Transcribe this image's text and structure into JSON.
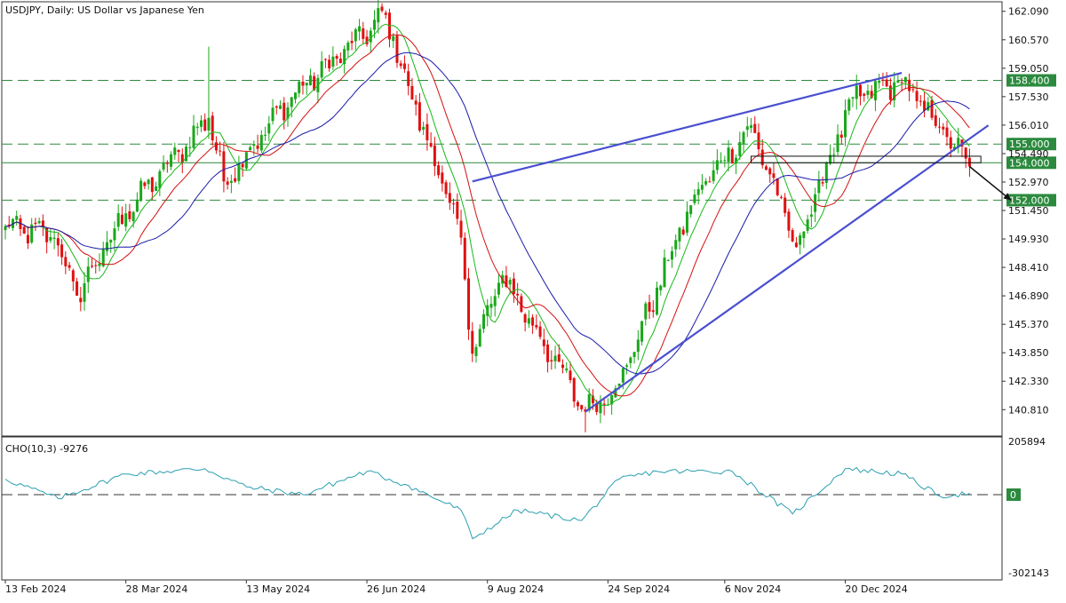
{
  "main_title": "USDJPY, Daily:  US Dollar vs Japanese Yen",
  "indicator_title": "CHO(10,3) -9276",
  "colors": {
    "bull": "#1aa71a",
    "bear": "#e01010",
    "ma_fast": "#19b919",
    "ma_mid": "#d41010",
    "ma_slow": "#1a1aa8",
    "trendline": "#4a4fd0",
    "level_line": "#2b8a3e",
    "cho_line": "#2a9fb0",
    "label_bg": "#2b8a3e",
    "label_text": "#ffffff"
  },
  "chart_data": [
    {
      "type": "candlestick",
      "title": "USDJPY, Daily:  US Dollar vs Japanese Yen",
      "price_ticks": [
        "162.090",
        "160.570",
        "159.050",
        "157.530",
        "156.010",
        "154.490",
        "152.970",
        "151.450",
        "149.930",
        "148.410",
        "146.890",
        "145.370",
        "143.850",
        "142.330",
        "140.810"
      ],
      "date_ticks": [
        "13 Feb 2024",
        "28 Mar 2024",
        "13 May 2024",
        "26 Jun 2024",
        "9 Aug 2024",
        "24 Sep 2024",
        "6 Nov 2024",
        "20 Dec 2024"
      ],
      "ylim": [
        139.4,
        162.6
      ],
      "horizontal_levels": [
        {
          "value": 158.4,
          "label": "158.400",
          "style": "dashed"
        },
        {
          "value": 155.0,
          "label": "155.000",
          "style": "dashed"
        },
        {
          "value": 154.0,
          "label": "154.000",
          "style": "solid"
        },
        {
          "value": 152.0,
          "label": "152.000",
          "style": "dashed"
        }
      ],
      "key_points": [
        {
          "date": "2024-02-13",
          "close": 150.6
        },
        {
          "date": "2024-03-01",
          "close": 150.0
        },
        {
          "date": "2024-03-11",
          "close": 146.9
        },
        {
          "date": "2024-03-28",
          "close": 151.3
        },
        {
          "date": "2024-04-29",
          "high": 160.2,
          "close": 156.4
        },
        {
          "date": "2024-05-03",
          "close": 153.0
        },
        {
          "date": "2024-05-29",
          "close": 157.5
        },
        {
          "date": "2024-07-03",
          "close": 161.9
        },
        {
          "date": "2024-07-11",
          "close": 158.1
        },
        {
          "date": "2024-07-31",
          "close": 150.0
        },
        {
          "date": "2024-08-05",
          "close": 143.8
        },
        {
          "date": "2024-08-15",
          "close": 148.0
        },
        {
          "date": "2024-09-16",
          "low": 139.6,
          "close": 140.7
        },
        {
          "date": "2024-09-27",
          "close": 142.2
        },
        {
          "date": "2024-10-25",
          "close": 152.3
        },
        {
          "date": "2024-11-15",
          "close": 156.0
        },
        {
          "date": "2024-12-03",
          "close": 149.5
        },
        {
          "date": "2024-12-24",
          "close": 157.5
        },
        {
          "date": "2025-01-10",
          "close": 158.3
        },
        {
          "date": "2025-01-24",
          "close": 155.9
        },
        {
          "date": "2025-02-05",
          "close": 153.8
        }
      ],
      "moving_averages": [
        {
          "name": "fast",
          "color": "#19b919"
        },
        {
          "name": "mid",
          "color": "#d41010"
        },
        {
          "name": "slow",
          "color": "#1a1aa8"
        }
      ],
      "trendlines": [
        {
          "from": {
            "date": "2024-08-05",
            "value": 153.0
          },
          "to": {
            "date": "2025-01-10",
            "value": 158.8
          }
        },
        {
          "from": {
            "date": "2024-09-16",
            "value": 140.7
          },
          "to": {
            "date": "2025-02-12",
            "value": 156.0
          }
        }
      ],
      "annotations": [
        {
          "type": "rectangle",
          "from": {
            "date": "2024-11-15",
            "value": 154.35
          },
          "to": {
            "date": "2025-02-10",
            "value": 154.0
          }
        },
        {
          "type": "arrow",
          "from": {
            "date": "2025-02-05",
            "value": 153.8
          },
          "to": {
            "date": "2025-02-20",
            "value": 152.0
          }
        }
      ]
    },
    {
      "type": "line",
      "title": "CHO(10,3) -9276",
      "y_ticks": [
        "205894",
        "0",
        "-302143"
      ],
      "ylim": [
        -302143,
        205894
      ],
      "zero_line": true,
      "series": [
        {
          "color": "#2a9fb0",
          "key_points": [
            {
              "date": "2024-02-13",
              "value": 60000
            },
            {
              "date": "2024-03-04",
              "value": -15000
            },
            {
              "date": "2024-03-28",
              "value": 80000
            },
            {
              "date": "2024-04-26",
              "value": 100000
            },
            {
              "date": "2024-05-13",
              "value": 30000
            },
            {
              "date": "2024-06-03",
              "value": 0
            },
            {
              "date": "2024-06-26",
              "value": 90000
            },
            {
              "date": "2024-07-10",
              "value": 40000
            },
            {
              "date": "2024-07-31",
              "value": -60000
            },
            {
              "date": "2024-08-05",
              "value": -170000
            },
            {
              "date": "2024-08-21",
              "value": -60000
            },
            {
              "date": "2024-09-13",
              "value": -100000
            },
            {
              "date": "2024-09-27",
              "value": 60000
            },
            {
              "date": "2024-10-11",
              "value": 90000
            },
            {
              "date": "2024-11-08",
              "value": 90000
            },
            {
              "date": "2024-12-02",
              "value": -75000
            },
            {
              "date": "2024-12-20",
              "value": 100000
            },
            {
              "date": "2025-01-10",
              "value": 80000
            },
            {
              "date": "2025-01-24",
              "value": -5000
            },
            {
              "date": "2025-02-05",
              "value": 5000
            }
          ]
        }
      ]
    }
  ]
}
